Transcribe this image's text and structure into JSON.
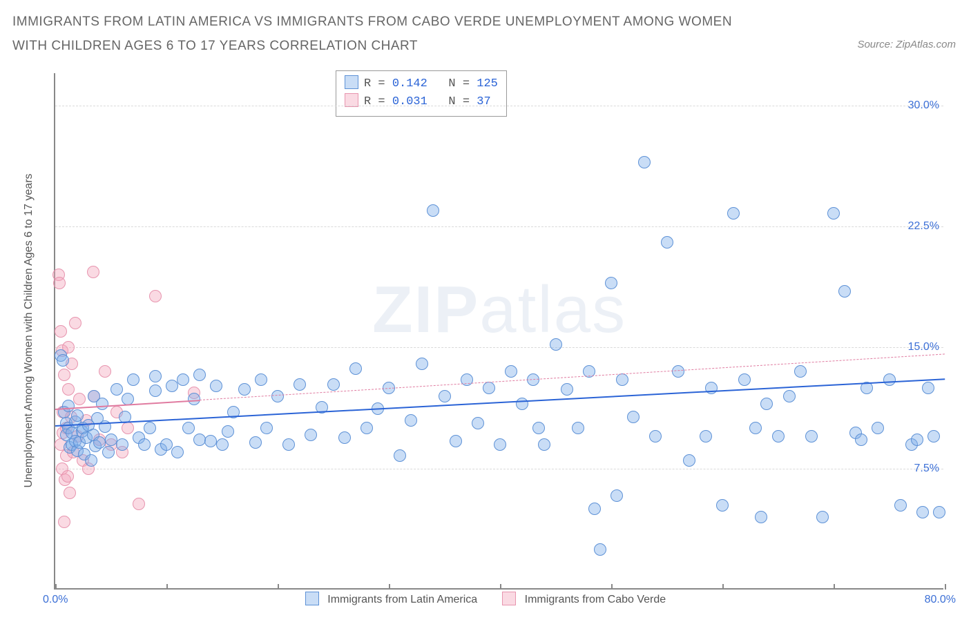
{
  "title": "IMMIGRANTS FROM LATIN AMERICA VS IMMIGRANTS FROM CABO VERDE UNEMPLOYMENT AMONG WOMEN WITH CHILDREN AGES 6 TO 17 YEARS CORRELATION CHART",
  "source": "Source: ZipAtlas.com",
  "watermark_a": "ZIP",
  "watermark_b": "atlas",
  "chart": {
    "type": "scatter",
    "xlim": [
      0,
      80
    ],
    "ylim": [
      0,
      32
    ],
    "x_ticks": [
      0,
      10,
      20,
      30,
      40,
      50,
      60,
      70,
      80
    ],
    "y_gridlines": [
      7.5,
      15.0,
      22.5,
      30.0
    ],
    "y_tick_labels": [
      "7.5%",
      "15.0%",
      "22.5%",
      "30.0%"
    ],
    "x_min_label": "0.0%",
    "x_max_label": "80.0%",
    "y_axis_title": "Unemployment Among Women with Children Ages 6 to 17 years",
    "background_color": "#ffffff",
    "grid_color": "#d9d9d9",
    "axis_color": "#888888",
    "series": [
      {
        "key": "latin",
        "label": "Immigrants from Latin America",
        "fill": "rgba(127,173,234,0.42)",
        "stroke": "#5d91d6",
        "trend_color": "#2a63d6",
        "R": "0.142",
        "N": "125",
        "radius": 9,
        "trend": {
          "x1": 0,
          "y1": 10.2,
          "x2": 80,
          "y2": 13.1,
          "solid_until_x": 80
        },
        "points": [
          [
            0.5,
            14.5
          ],
          [
            0.7,
            14.2
          ],
          [
            0.8,
            11.0
          ],
          [
            1.0,
            10.3
          ],
          [
            1.0,
            9.6
          ],
          [
            1.2,
            11.4
          ],
          [
            1.2,
            10.0
          ],
          [
            1.3,
            8.8
          ],
          [
            1.5,
            9.7
          ],
          [
            1.5,
            9.0
          ],
          [
            1.8,
            10.4
          ],
          [
            1.8,
            9.2
          ],
          [
            2.0,
            10.8
          ],
          [
            2.0,
            8.6
          ],
          [
            2.2,
            9.1
          ],
          [
            2.4,
            9.8
          ],
          [
            2.5,
            10.0
          ],
          [
            2.6,
            8.4
          ],
          [
            2.8,
            9.4
          ],
          [
            3.0,
            10.2
          ],
          [
            3.2,
            8.0
          ],
          [
            3.4,
            9.6
          ],
          [
            3.5,
            12.0
          ],
          [
            3.6,
            8.9
          ],
          [
            3.8,
            10.6
          ],
          [
            4.0,
            9.1
          ],
          [
            4.2,
            11.5
          ],
          [
            4.5,
            10.1
          ],
          [
            4.8,
            8.5
          ],
          [
            5.0,
            9.3
          ],
          [
            5.5,
            12.4
          ],
          [
            6.0,
            9.0
          ],
          [
            6.3,
            10.7
          ],
          [
            6.5,
            11.8
          ],
          [
            7.0,
            13.0
          ],
          [
            7.5,
            9.4
          ],
          [
            8.0,
            9.0
          ],
          [
            8.5,
            10.0
          ],
          [
            9.0,
            13.2
          ],
          [
            9.0,
            12.3
          ],
          [
            9.5,
            8.7
          ],
          [
            10.0,
            9.0
          ],
          [
            10.5,
            12.6
          ],
          [
            11.0,
            8.5
          ],
          [
            11.5,
            13.0
          ],
          [
            12.0,
            10.0
          ],
          [
            12.5,
            11.8
          ],
          [
            13.0,
            13.3
          ],
          [
            13.0,
            9.3
          ],
          [
            14.0,
            9.2
          ],
          [
            14.5,
            12.6
          ],
          [
            15.0,
            9.0
          ],
          [
            15.5,
            9.8
          ],
          [
            16.0,
            11.0
          ],
          [
            17.0,
            12.4
          ],
          [
            18.0,
            9.1
          ],
          [
            18.5,
            13.0
          ],
          [
            19.0,
            10.0
          ],
          [
            20.0,
            12.0
          ],
          [
            21.0,
            9.0
          ],
          [
            22.0,
            12.7
          ],
          [
            23.0,
            9.6
          ],
          [
            24.0,
            11.3
          ],
          [
            25.0,
            12.7
          ],
          [
            26.0,
            9.4
          ],
          [
            27.0,
            13.7
          ],
          [
            28.0,
            10.0
          ],
          [
            29.0,
            11.2
          ],
          [
            30.0,
            12.5
          ],
          [
            31.0,
            8.3
          ],
          [
            32.0,
            10.5
          ],
          [
            33.0,
            14.0
          ],
          [
            34.0,
            23.5
          ],
          [
            35.0,
            12.0
          ],
          [
            36.0,
            9.2
          ],
          [
            37.0,
            13.0
          ],
          [
            38.0,
            10.3
          ],
          [
            39.0,
            12.5
          ],
          [
            40.0,
            9.0
          ],
          [
            41.0,
            13.5
          ],
          [
            42.0,
            11.5
          ],
          [
            43.0,
            13.0
          ],
          [
            43.5,
            10.0
          ],
          [
            44.0,
            9.0
          ],
          [
            45.0,
            15.2
          ],
          [
            46.0,
            12.4
          ],
          [
            47.0,
            10.0
          ],
          [
            48.0,
            13.5
          ],
          [
            48.5,
            5.0
          ],
          [
            49.0,
            2.5
          ],
          [
            50.0,
            19.0
          ],
          [
            50.5,
            5.8
          ],
          [
            51.0,
            13.0
          ],
          [
            52.0,
            10.7
          ],
          [
            53.0,
            26.5
          ],
          [
            54.0,
            9.5
          ],
          [
            55.0,
            21.5
          ],
          [
            56.0,
            13.5
          ],
          [
            57.0,
            8.0
          ],
          [
            58.5,
            9.5
          ],
          [
            59.0,
            12.5
          ],
          [
            60.0,
            5.2
          ],
          [
            61.0,
            23.3
          ],
          [
            62.0,
            13.0
          ],
          [
            63.0,
            10.0
          ],
          [
            63.5,
            4.5
          ],
          [
            64.0,
            11.5
          ],
          [
            65.0,
            9.5
          ],
          [
            66.0,
            12.0
          ],
          [
            67.0,
            13.5
          ],
          [
            68.0,
            9.5
          ],
          [
            69.0,
            4.5
          ],
          [
            70.0,
            23.3
          ],
          [
            71.0,
            18.5
          ],
          [
            72.0,
            9.7
          ],
          [
            72.5,
            9.3
          ],
          [
            73.0,
            12.5
          ],
          [
            74.0,
            10.0
          ],
          [
            75.0,
            13.0
          ],
          [
            76.0,
            5.2
          ],
          [
            77.0,
            9.0
          ],
          [
            77.5,
            9.3
          ],
          [
            78.0,
            4.8
          ],
          [
            78.5,
            12.5
          ],
          [
            79.0,
            9.5
          ],
          [
            79.5,
            4.8
          ]
        ]
      },
      {
        "key": "cabo",
        "label": "Immigrants from Cabo Verde",
        "fill": "rgba(244,166,188,0.42)",
        "stroke": "#e794ae",
        "trend_color": "#e07ba0",
        "R": "0.031",
        "N": " 37",
        "radius": 9,
        "trend": {
          "x1": 0,
          "y1": 11.2,
          "x2": 80,
          "y2": 14.6,
          "solid_until_x": 13
        },
        "points": [
          [
            0.3,
            19.5
          ],
          [
            0.4,
            19.0
          ],
          [
            0.5,
            16.0
          ],
          [
            0.5,
            9.0
          ],
          [
            0.6,
            14.8
          ],
          [
            0.6,
            7.5
          ],
          [
            0.7,
            11.0
          ],
          [
            0.7,
            9.7
          ],
          [
            0.8,
            4.2
          ],
          [
            0.8,
            13.3
          ],
          [
            0.9,
            6.8
          ],
          [
            1.0,
            10.0
          ],
          [
            1.0,
            8.3
          ],
          [
            1.1,
            7.0
          ],
          [
            1.2,
            12.4
          ],
          [
            1.2,
            15.0
          ],
          [
            1.3,
            6.0
          ],
          [
            1.4,
            10.7
          ],
          [
            1.5,
            14.0
          ],
          [
            1.6,
            8.5
          ],
          [
            1.8,
            16.5
          ],
          [
            2.0,
            9.5
          ],
          [
            2.2,
            11.8
          ],
          [
            2.5,
            8.0
          ],
          [
            2.8,
            10.5
          ],
          [
            3.0,
            7.5
          ],
          [
            3.4,
            19.7
          ],
          [
            3.5,
            12.0
          ],
          [
            4.0,
            9.3
          ],
          [
            4.5,
            13.5
          ],
          [
            5.0,
            9.0
          ],
          [
            5.5,
            11.0
          ],
          [
            6.0,
            8.5
          ],
          [
            6.5,
            10.0
          ],
          [
            7.5,
            5.3
          ],
          [
            9.0,
            18.2
          ],
          [
            12.5,
            12.2
          ]
        ]
      }
    ],
    "legend_labels": {
      "latin": "Immigrants from Latin America",
      "cabo": "Immigrants from Cabo Verde"
    }
  },
  "stats_labels": {
    "R": "R =",
    "N": "N ="
  }
}
